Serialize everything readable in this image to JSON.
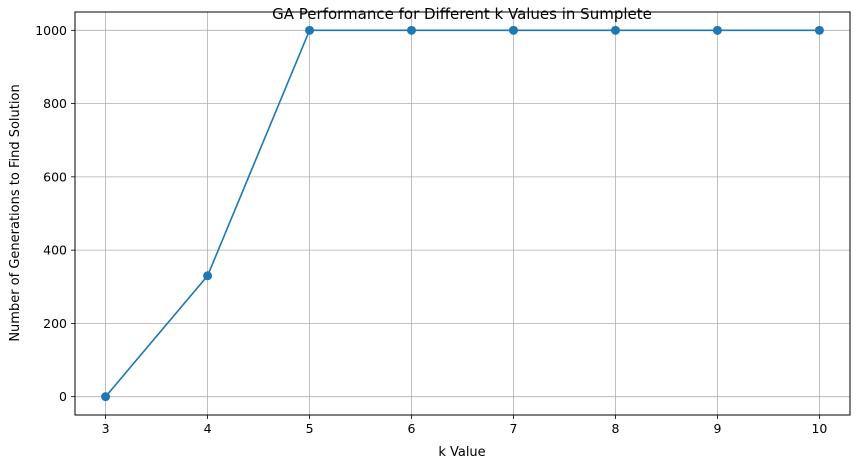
{
  "chart_data": {
    "type": "line",
    "title": "GA Performance for Different k Values in Sumplete",
    "xlabel": "k Value",
    "ylabel": "Number of Generations to Find Solution",
    "x": [
      3,
      4,
      5,
      6,
      7,
      8,
      9,
      10
    ],
    "y": [
      0,
      330,
      1000,
      1000,
      1000,
      1000,
      1000,
      1000
    ],
    "xlim": [
      2.7,
      10.3
    ],
    "ylim": [
      -50,
      1050
    ],
    "xticks": [
      3,
      4,
      5,
      6,
      7,
      8,
      9,
      10
    ],
    "yticks": [
      0,
      200,
      400,
      600,
      800,
      1000
    ],
    "grid": true,
    "marker": "circle",
    "line_color": "#1f77b4"
  }
}
